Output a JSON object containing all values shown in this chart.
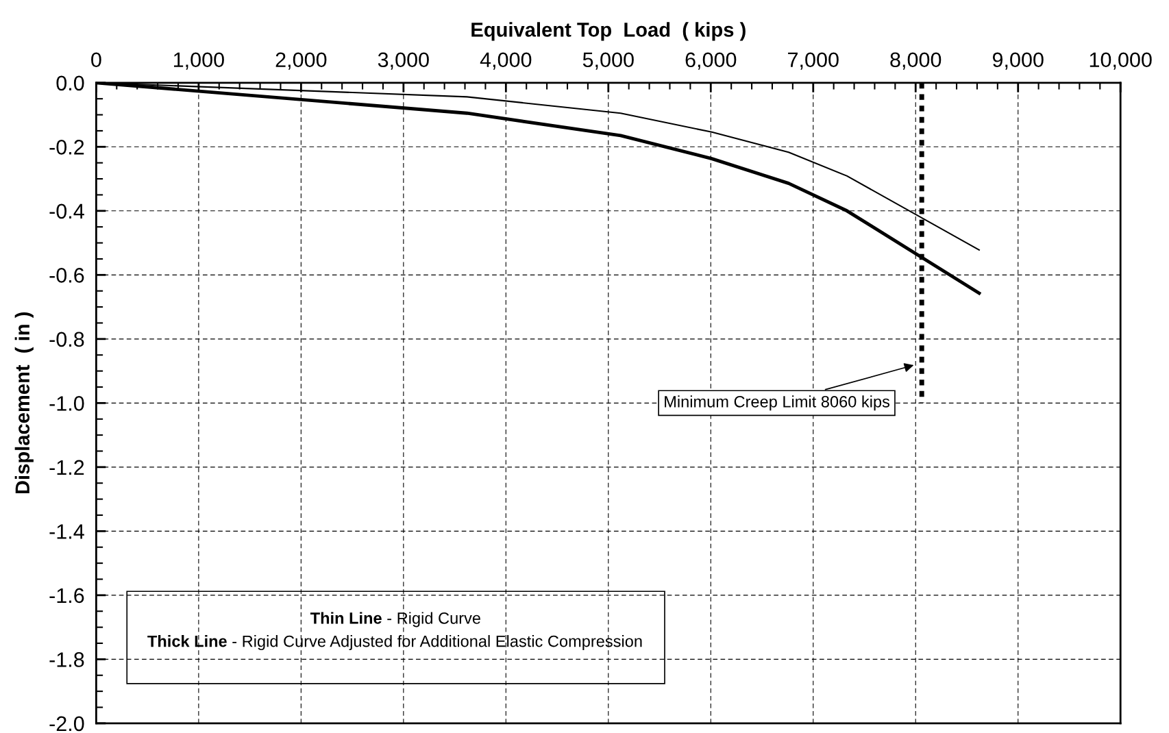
{
  "chart_data": {
    "type": "line",
    "xlabel": "Equivalent Top  Load  ( kips )",
    "ylabel": "Displacement  ( in )",
    "x": [
      0,
      3620,
      5120,
      6010,
      6760,
      7330,
      8620
    ],
    "series": [
      {
        "color": "#000000",
        "values": [
          0,
          -0.044,
          -0.095,
          -0.154,
          -0.217,
          -0.291,
          -0.522
        ]
      },
      {
        "color": "#000000",
        "values": [
          0,
          -0.095,
          -0.165,
          -0.237,
          -0.314,
          -0.4,
          -0.657
        ]
      }
    ],
    "xlim": [
      0,
      10000
    ],
    "xticks": [
      0,
      {
        "value": 1000,
        "label": "1,000"
      },
      {
        "value": 2000,
        "label": "2,000"
      },
      {
        "value": 3000,
        "label": "3,000"
      },
      {
        "value": 4000,
        "label": "4,000"
      },
      {
        "value": 5000,
        "label": "5,000"
      },
      {
        "value": 6000,
        "label": "6,000"
      },
      {
        "value": 7000,
        "label": "7,000"
      },
      {
        "value": 8000,
        "label": "8,000"
      },
      {
        "value": 9000,
        "label": "9,000"
      },
      {
        "value": 10000,
        "label": "10,000"
      }
    ],
    "ylim": [
      -2.0,
      0.0
    ],
    "yticks": [
      {
        "value": 0,
        "label": "0.0"
      },
      {
        "value": -0.2,
        "label": "-0.2"
      },
      {
        "value": -0.4,
        "label": "-0.4"
      },
      {
        "value": -0.6,
        "label": "-0.6"
      },
      {
        "value": -0.8,
        "label": "-0.8"
      },
      {
        "value": -1.0,
        "label": "-1.0"
      },
      {
        "value": -1.2,
        "label": "-1.2"
      },
      {
        "value": -1.4,
        "label": "-1.4"
      },
      {
        "value": -1.6,
        "label": "-1.6"
      },
      {
        "value": -1.8,
        "label": "-1.8"
      },
      {
        "value": -2.0,
        "label": "-2.0"
      }
    ],
    "grid": true,
    "marker": "none",
    "line_style": "solid",
    "ref_lines": [
      {
        "axis": "x",
        "value": 8060,
        "color": "#000000",
        "line_style": "dotted"
      }
    ],
    "annotations": [
      "Minimum Creep Limit 8060 kips",
      "Thin Line - Rigid Curve",
      "Thick Line - Rigid Curve Adjusted for Additional Elastic Compression"
    ]
  }
}
